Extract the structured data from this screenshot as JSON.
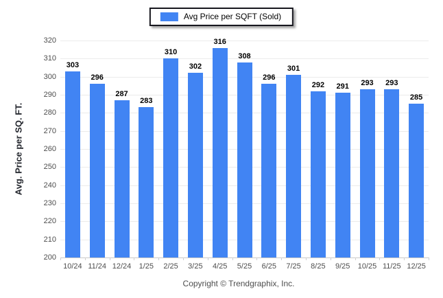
{
  "legend": {
    "label": "Avg Price per SQFT (Sold)",
    "swatch_color": "#4184F3"
  },
  "chart_data": {
    "type": "bar",
    "title": "",
    "categories": [
      "10/24",
      "11/24",
      "12/24",
      "1/25",
      "2/25",
      "3/25",
      "4/25",
      "5/25",
      "6/25",
      "7/25",
      "8/25",
      "9/25",
      "10/25",
      "11/25",
      "12/25"
    ],
    "values": [
      303,
      296,
      287,
      283,
      310,
      302,
      316,
      308,
      296,
      301,
      292,
      291,
      293,
      293,
      285
    ],
    "series_name": "Avg Price per SQFT (Sold)",
    "xlabel": "",
    "ylabel": "Avg. Price per SQ. FT.",
    "ylim": [
      200,
      320
    ],
    "ytick_step": 10,
    "grid": true,
    "legend_position": "top-center",
    "bar_color": "#4184F3",
    "value_labels_shown": true
  },
  "footer": {
    "copyright": "Copyright © Trendgraphix, Inc."
  }
}
